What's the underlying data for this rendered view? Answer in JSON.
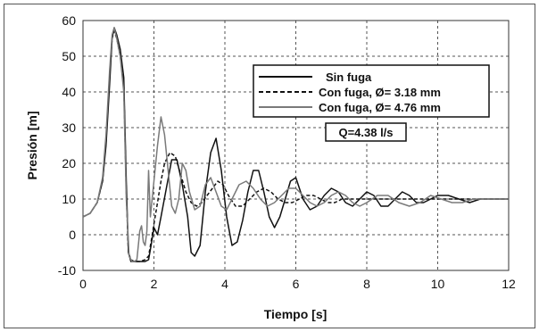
{
  "chart_data": {
    "type": "line",
    "xlabel": "Tiempo [s]",
    "ylabel": "Presión [m]",
    "xlim": [
      0,
      12
    ],
    "ylim": [
      -10,
      60
    ],
    "xticks": [
      0,
      2,
      4,
      6,
      8,
      10,
      12
    ],
    "yticks": [
      -10,
      0,
      10,
      20,
      30,
      40,
      50,
      60
    ],
    "grid": true,
    "legend_position": "upper-right",
    "annotation": "Q=4.38 l/s",
    "series": [
      {
        "name": "Sin fuga",
        "style": "solid",
        "color": "#111111",
        "x": [
          0,
          0.2,
          0.4,
          0.55,
          0.65,
          0.75,
          0.82,
          0.88,
          0.95,
          1.05,
          1.15,
          1.22,
          1.28,
          1.35,
          1.45,
          1.6,
          1.75,
          1.85,
          1.92,
          2.0,
          2.1,
          2.2,
          2.35,
          2.5,
          2.65,
          2.8,
          2.95,
          3.05,
          3.15,
          3.3,
          3.45,
          3.6,
          3.75,
          3.9,
          4.05,
          4.2,
          4.35,
          4.5,
          4.65,
          4.8,
          4.95,
          5.1,
          5.25,
          5.4,
          5.55,
          5.7,
          5.85,
          6.0,
          6.2,
          6.4,
          6.6,
          6.8,
          7.0,
          7.2,
          7.4,
          7.6,
          7.8,
          8.0,
          8.2,
          8.4,
          8.6,
          8.8,
          9.0,
          9.2,
          9.4,
          9.6,
          9.8,
          10.0,
          10.3,
          10.6,
          10.9,
          11.2,
          11.5,
          11.8,
          12.0
        ],
        "y": [
          5,
          6,
          9,
          15,
          25,
          42,
          55,
          58,
          56,
          52,
          44,
          15,
          -5,
          -7.5,
          -7.5,
          -7.5,
          -7.5,
          -7,
          -3,
          2,
          0,
          5,
          13,
          21,
          21,
          14,
          5,
          -5,
          -6,
          -3,
          12,
          23,
          27,
          18,
          5,
          -3,
          -2,
          4,
          12,
          18,
          18,
          12,
          5,
          2,
          5,
          10,
          15,
          16,
          10,
          7,
          8,
          11,
          13,
          12,
          9,
          8,
          10,
          12,
          11,
          8,
          8,
          10,
          12,
          11,
          9,
          9,
          10,
          11,
          11,
          10,
          9,
          10,
          10,
          10,
          10
        ]
      },
      {
        "name": "Con fuga, Ø= 3.18 mm",
        "style": "dashed",
        "color": "#111111",
        "x": [
          0,
          0.2,
          0.4,
          0.55,
          0.65,
          0.75,
          0.82,
          0.88,
          0.95,
          1.05,
          1.15,
          1.22,
          1.28,
          1.35,
          1.45,
          1.6,
          1.75,
          1.85,
          1.92,
          2.0,
          2.1,
          2.2,
          2.3,
          2.45,
          2.6,
          2.75,
          2.9,
          3.05,
          3.2,
          3.35,
          3.5,
          3.65,
          3.8,
          3.95,
          4.1,
          4.3,
          4.5,
          4.7,
          4.9,
          5.1,
          5.3,
          5.5,
          5.7,
          5.9,
          6.1,
          6.3,
          6.5,
          6.7,
          6.9,
          7.1,
          7.3,
          7.6,
          7.9,
          8.2,
          8.5,
          8.8,
          9.1,
          9.4,
          9.7,
          10.0,
          10.4,
          10.8,
          11.2,
          11.6,
          12.0
        ],
        "y": [
          5,
          6,
          9,
          15,
          26,
          44,
          55,
          57,
          55,
          50,
          42,
          12,
          -5,
          -7,
          -7.5,
          -7.5,
          -7,
          -6,
          -2,
          3,
          9,
          15,
          20,
          23,
          22,
          17,
          12,
          9,
          8,
          9,
          11,
          13,
          15,
          14,
          11,
          8,
          8,
          10,
          12,
          13,
          12,
          10,
          9,
          9,
          10,
          11,
          11,
          10,
          9,
          9,
          10,
          10,
          10,
          10,
          10,
          10,
          10,
          10,
          10,
          10,
          10,
          10,
          10,
          10,
          10
        ]
      },
      {
        "name": "Con fuga, Ø= 4.76 mm",
        "style": "solid",
        "color": "#7a7a7a",
        "x": [
          0,
          0.2,
          0.4,
          0.55,
          0.65,
          0.75,
          0.82,
          0.88,
          0.95,
          1.05,
          1.15,
          1.22,
          1.3,
          1.38,
          1.45,
          1.52,
          1.6,
          1.65,
          1.7,
          1.75,
          1.8,
          1.85,
          1.9,
          2.0,
          2.1,
          2.2,
          2.3,
          2.4,
          2.5,
          2.6,
          2.7,
          2.8,
          2.9,
          3.0,
          3.15,
          3.3,
          3.45,
          3.6,
          3.75,
          3.9,
          4.05,
          4.2,
          4.4,
          4.6,
          4.8,
          5.0,
          5.2,
          5.4,
          5.6,
          5.8,
          6.0,
          6.2,
          6.4,
          6.6,
          6.8,
          7.0,
          7.2,
          7.4,
          7.6,
          7.8,
          8.0,
          8.3,
          8.6,
          8.9,
          9.2,
          9.5,
          9.8,
          10.1,
          10.4,
          10.7,
          11.0,
          11.3,
          11.6,
          12.0
        ],
        "y": [
          5,
          6,
          9,
          16,
          28,
          46,
          56,
          58,
          55,
          50,
          40,
          10,
          -6,
          -7.5,
          -7.5,
          -7,
          1,
          2.5,
          -2,
          -3,
          1,
          18,
          5,
          15,
          25,
          33,
          28,
          18,
          8,
          6,
          10,
          20,
          18,
          12,
          7,
          8,
          14,
          16,
          12,
          8,
          7,
          10,
          14,
          15,
          13,
          10,
          8,
          9,
          11,
          13,
          13,
          11,
          9,
          8,
          9,
          11,
          12,
          11,
          9,
          8,
          9,
          11,
          11,
          9,
          8,
          9,
          11,
          10,
          9,
          9,
          10,
          10,
          10,
          10
        ]
      }
    ]
  }
}
